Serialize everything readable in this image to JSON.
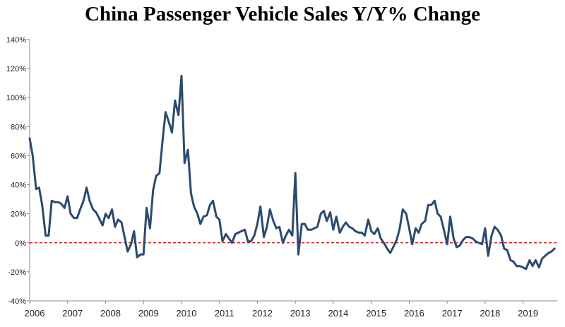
{
  "chart_data": {
    "type": "line",
    "title": "China Passenger Vehicle Sales Y/Y% Change",
    "xlabel": "",
    "ylabel": "",
    "ylim": [
      -40,
      140
    ],
    "y_ticks": [
      "140%",
      "120%",
      "100%",
      "80%",
      "60%",
      "40%",
      "20%",
      "0%",
      "-20%",
      "-40%"
    ],
    "y_tick_values": [
      140,
      120,
      100,
      80,
      60,
      40,
      20,
      0,
      -20,
      -40
    ],
    "x_tick_labels": [
      "2006",
      "2007",
      "2008",
      "2009",
      "2010",
      "2011",
      "2012",
      "2013",
      "2014",
      "2015",
      "2016",
      "2017",
      "2018",
      "2019"
    ],
    "x_tick_years": [
      2006,
      2007,
      2008,
      2009,
      2010,
      2011,
      2012,
      2013,
      2014,
      2015,
      2016,
      2017,
      2018,
      2019
    ],
    "xlim": [
      2006,
      2019.9
    ],
    "grid": false,
    "reference_line": {
      "y": 0,
      "color": "#cc0000",
      "style": "dashed"
    },
    "series": [
      {
        "color": "#2b4a6f",
        "points": [
          [
            2006.0,
            72
          ],
          [
            2006.08,
            60
          ],
          [
            2006.17,
            37
          ],
          [
            2006.25,
            38
          ],
          [
            2006.33,
            26
          ],
          [
            2006.42,
            5
          ],
          [
            2006.5,
            5
          ],
          [
            2006.58,
            29
          ],
          [
            2006.67,
            28
          ],
          [
            2006.75,
            28
          ],
          [
            2006.83,
            27
          ],
          [
            2006.92,
            24
          ],
          [
            2007.0,
            32
          ],
          [
            2007.08,
            20
          ],
          [
            2007.17,
            17
          ],
          [
            2007.25,
            17
          ],
          [
            2007.33,
            23
          ],
          [
            2007.42,
            29
          ],
          [
            2007.5,
            38
          ],
          [
            2007.58,
            29
          ],
          [
            2007.67,
            23
          ],
          [
            2007.75,
            21
          ],
          [
            2007.83,
            17
          ],
          [
            2007.92,
            12
          ],
          [
            2008.0,
            20
          ],
          [
            2008.08,
            17
          ],
          [
            2008.17,
            23
          ],
          [
            2008.25,
            11
          ],
          [
            2008.33,
            16
          ],
          [
            2008.42,
            14
          ],
          [
            2008.5,
            4
          ],
          [
            2008.58,
            -6
          ],
          [
            2008.67,
            -1
          ],
          [
            2008.75,
            8
          ],
          [
            2008.83,
            -10
          ],
          [
            2008.92,
            -8
          ],
          [
            2009.0,
            -8
          ],
          [
            2009.08,
            24
          ],
          [
            2009.17,
            10
          ],
          [
            2009.25,
            36
          ],
          [
            2009.33,
            46
          ],
          [
            2009.42,
            48
          ],
          [
            2009.5,
            70
          ],
          [
            2009.58,
            90
          ],
          [
            2009.67,
            83
          ],
          [
            2009.75,
            76
          ],
          [
            2009.83,
            98
          ],
          [
            2009.92,
            88
          ],
          [
            2010.0,
            115
          ],
          [
            2010.08,
            55
          ],
          [
            2010.17,
            64
          ],
          [
            2010.25,
            34
          ],
          [
            2010.33,
            25
          ],
          [
            2010.42,
            20
          ],
          [
            2010.5,
            13
          ],
          [
            2010.58,
            18
          ],
          [
            2010.67,
            19
          ],
          [
            2010.75,
            26
          ],
          [
            2010.83,
            29
          ],
          [
            2010.92,
            18
          ],
          [
            2011.0,
            16
          ],
          [
            2011.08,
            1
          ],
          [
            2011.17,
            6
          ],
          [
            2011.25,
            3
          ],
          [
            2011.33,
            0
          ],
          [
            2011.42,
            6
          ],
          [
            2011.5,
            7
          ],
          [
            2011.58,
            8
          ],
          [
            2011.67,
            9
          ],
          [
            2011.75,
            1
          ],
          [
            2011.83,
            1
          ],
          [
            2011.92,
            5
          ],
          [
            2012.0,
            13
          ],
          [
            2012.08,
            25
          ],
          [
            2012.17,
            4
          ],
          [
            2012.25,
            11
          ],
          [
            2012.33,
            23
          ],
          [
            2012.42,
            15
          ],
          [
            2012.5,
            10
          ],
          [
            2012.58,
            11
          ],
          [
            2012.67,
            0
          ],
          [
            2012.75,
            5
          ],
          [
            2012.83,
            9
          ],
          [
            2012.92,
            5
          ],
          [
            2013.0,
            48
          ],
          [
            2013.08,
            -8
          ],
          [
            2013.17,
            13
          ],
          [
            2013.25,
            13
          ],
          [
            2013.33,
            9
          ],
          [
            2013.42,
            9
          ],
          [
            2013.5,
            10
          ],
          [
            2013.58,
            11
          ],
          [
            2013.67,
            20
          ],
          [
            2013.75,
            22
          ],
          [
            2013.83,
            15
          ],
          [
            2013.92,
            21
          ],
          [
            2014.0,
            9
          ],
          [
            2014.08,
            18
          ],
          [
            2014.17,
            7
          ],
          [
            2014.25,
            11
          ],
          [
            2014.33,
            14
          ],
          [
            2014.42,
            11
          ],
          [
            2014.5,
            10
          ],
          [
            2014.58,
            8
          ],
          [
            2014.67,
            7
          ],
          [
            2014.75,
            7
          ],
          [
            2014.83,
            5
          ],
          [
            2014.92,
            16
          ],
          [
            2015.0,
            8
          ],
          [
            2015.08,
            6
          ],
          [
            2015.17,
            10
          ],
          [
            2015.25,
            3
          ],
          [
            2015.33,
            0
          ],
          [
            2015.42,
            -4
          ],
          [
            2015.5,
            -7
          ],
          [
            2015.58,
            -3
          ],
          [
            2015.67,
            2
          ],
          [
            2015.75,
            10
          ],
          [
            2015.83,
            23
          ],
          [
            2015.92,
            20
          ],
          [
            2016.0,
            10
          ],
          [
            2016.08,
            -1
          ],
          [
            2016.17,
            10
          ],
          [
            2016.25,
            7
          ],
          [
            2016.33,
            13
          ],
          [
            2016.42,
            15
          ],
          [
            2016.5,
            26
          ],
          [
            2016.58,
            26
          ],
          [
            2016.67,
            29
          ],
          [
            2016.75,
            20
          ],
          [
            2016.83,
            18
          ],
          [
            2016.92,
            8
          ],
          [
            2017.0,
            -1
          ],
          [
            2017.08,
            18
          ],
          [
            2017.17,
            3
          ],
          [
            2017.25,
            -3
          ],
          [
            2017.33,
            -2
          ],
          [
            2017.42,
            2
          ],
          [
            2017.5,
            4
          ],
          [
            2017.58,
            4
          ],
          [
            2017.67,
            3
          ],
          [
            2017.75,
            1
          ],
          [
            2017.83,
            0
          ],
          [
            2017.92,
            -1
          ],
          [
            2018.0,
            10
          ],
          [
            2018.08,
            -9
          ],
          [
            2018.17,
            5
          ],
          [
            2018.25,
            11
          ],
          [
            2018.33,
            9
          ],
          [
            2018.42,
            5
          ],
          [
            2018.5,
            -4
          ],
          [
            2018.58,
            -5
          ],
          [
            2018.67,
            -12
          ],
          [
            2018.75,
            -13
          ],
          [
            2018.83,
            -16
          ],
          [
            2018.92,
            -16
          ],
          [
            2019.0,
            -17
          ],
          [
            2019.08,
            -18
          ],
          [
            2019.17,
            -12
          ],
          [
            2019.25,
            -16
          ],
          [
            2019.33,
            -12
          ],
          [
            2019.42,
            -17
          ],
          [
            2019.5,
            -11
          ],
          [
            2019.58,
            -9
          ],
          [
            2019.67,
            -7
          ],
          [
            2019.75,
            -6
          ],
          [
            2019.83,
            -4
          ]
        ]
      }
    ]
  }
}
